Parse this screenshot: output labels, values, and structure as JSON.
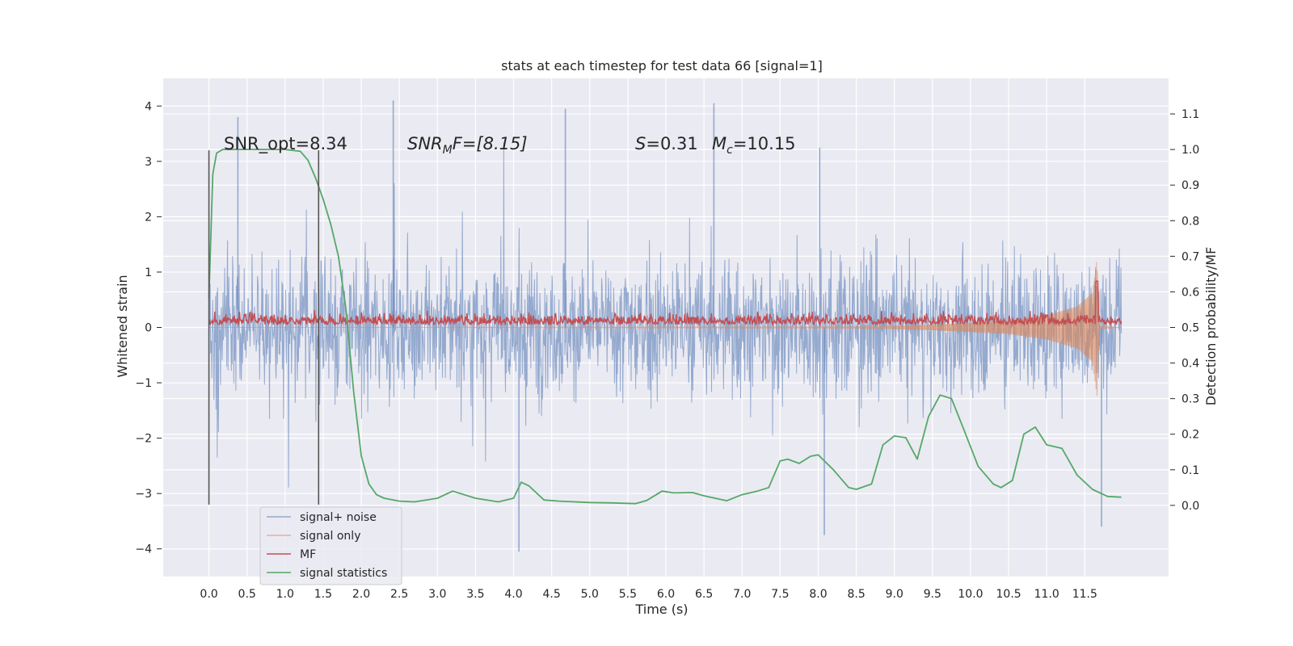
{
  "chart_data": {
    "type": "line",
    "title": "stats at each timestep for test data 66 [signal=1]",
    "xlabel": "Time (s)",
    "ylabel_left": "Whitened strain",
    "ylabel_right": "Detection probability/MF",
    "xlim": [
      -0.6,
      12.6
    ],
    "ylim_left": [
      -4.5,
      4.5
    ],
    "ylim_right": [
      -0.2,
      1.2
    ],
    "x_ticks": [
      0.0,
      0.5,
      1.0,
      1.5,
      2.0,
      2.5,
      3.0,
      3.5,
      4.0,
      4.5,
      5.0,
      5.5,
      6.0,
      6.5,
      7.0,
      7.5,
      8.0,
      8.5,
      9.0,
      9.5,
      10.0,
      10.5,
      11.0,
      11.5
    ],
    "x_tick_labels": [
      "0.0",
      "0.5",
      "1.0",
      "1.5",
      "2.0",
      "2.5",
      "3.0",
      "3.5",
      "4.0",
      "4.5",
      "5.0",
      "5.5",
      "6.0",
      "6.5",
      "7.0",
      "7.5",
      "8.0",
      "8.5",
      "9.0",
      "9.5",
      "10.0",
      "10.5",
      "11.0",
      "11.5"
    ],
    "y_left_ticks": [
      -4,
      -3,
      -2,
      -1,
      0,
      1,
      2,
      3,
      4
    ],
    "y_left_tick_labels": [
      "−4",
      "−3",
      "−2",
      "−1",
      "0",
      "1",
      "2",
      "3",
      "4"
    ],
    "y_right_ticks": [
      0.0,
      0.1,
      0.2,
      0.3,
      0.4,
      0.5,
      0.6,
      0.7,
      0.8,
      0.9,
      1.0,
      1.1
    ],
    "y_right_tick_labels": [
      "0.0",
      "0.1",
      "0.2",
      "0.3",
      "0.4",
      "0.5",
      "0.6",
      "0.7",
      "0.8",
      "0.9",
      "1.0",
      "1.1"
    ],
    "grid": true,
    "legend_position": "lower-left",
    "annotations": {
      "snr_opt": "SNR_opt=8.34",
      "snr_mf_base": "SNR",
      "snr_mf_sub": "M",
      "snr_mf_rest": "F=[8.15]",
      "s_letter": "S",
      "s_value": "=0.31",
      "mc_letter": "M",
      "mc_sub": "c",
      "mc_value": "=10.15"
    },
    "vertical_markers": [
      0.0,
      1.44
    ],
    "series": [
      {
        "name": "signal+ noise",
        "color": "#4c72b0",
        "x_range": [
          0.0,
          11.98
        ],
        "description_kind": "noise",
        "peaks": [
          {
            "x": 0.38,
            "y": 3.8
          },
          {
            "x": 2.42,
            "y": 4.1
          },
          {
            "x": 4.68,
            "y": 3.95
          },
          {
            "x": 6.63,
            "y": 4.05
          },
          {
            "x": 8.02,
            "y": 3.25
          },
          {
            "x": 4.07,
            "y": -4.05
          },
          {
            "x": 8.08,
            "y": -3.75
          },
          {
            "x": 11.72,
            "y": -3.6
          }
        ]
      },
      {
        "name": "signal only",
        "color": "#dd8452",
        "x": [
          0.0,
          8.5,
          9.5,
          10.5,
          11.0,
          11.4,
          11.6,
          11.66,
          11.7,
          11.98
        ],
        "amplitude": [
          0.0,
          0.01,
          0.05,
          0.12,
          0.22,
          0.38,
          0.62,
          1.25,
          0.02,
          0.0
        ]
      },
      {
        "name": "MF",
        "color": "#c44e52",
        "x_range": [
          0.0,
          11.98
        ],
        "baseline": 0.505,
        "peak_x": 11.66,
        "peak_y": 0.63
      },
      {
        "name": "signal statistics",
        "color": "#55a868",
        "x": [
          0.0,
          0.05,
          0.1,
          0.18,
          0.3,
          0.5,
          0.8,
          1.0,
          1.2,
          1.3,
          1.4,
          1.5,
          1.6,
          1.7,
          1.8,
          1.9,
          2.0,
          2.1,
          2.2,
          2.3,
          2.5,
          2.7,
          3.0,
          3.2,
          3.5,
          3.8,
          4.0,
          4.1,
          4.2,
          4.4,
          4.6,
          5.0,
          5.3,
          5.6,
          5.75,
          5.95,
          6.1,
          6.35,
          6.5,
          6.8,
          7.0,
          7.2,
          7.35,
          7.5,
          7.6,
          7.75,
          7.9,
          8.0,
          8.2,
          8.4,
          8.5,
          8.7,
          8.85,
          9.0,
          9.15,
          9.3,
          9.45,
          9.6,
          9.75,
          9.9,
          10.1,
          10.3,
          10.4,
          10.55,
          10.7,
          10.85,
          11.0,
          11.2,
          11.4,
          11.6,
          11.8,
          11.98
        ],
        "y": [
          0.58,
          0.93,
          0.99,
          1.0,
          1.0,
          1.0,
          1.0,
          1.0,
          0.995,
          0.97,
          0.92,
          0.86,
          0.79,
          0.7,
          0.55,
          0.32,
          0.14,
          0.06,
          0.03,
          0.02,
          0.012,
          0.01,
          0.02,
          0.04,
          0.02,
          0.01,
          0.02,
          0.065,
          0.055,
          0.015,
          0.012,
          0.008,
          0.007,
          0.005,
          0.014,
          0.04,
          0.035,
          0.036,
          0.027,
          0.013,
          0.03,
          0.04,
          0.05,
          0.125,
          0.13,
          0.118,
          0.138,
          0.142,
          0.1,
          0.05,
          0.045,
          0.06,
          0.17,
          0.195,
          0.19,
          0.13,
          0.25,
          0.31,
          0.3,
          0.22,
          0.11,
          0.06,
          0.05,
          0.07,
          0.2,
          0.22,
          0.17,
          0.16,
          0.085,
          0.045,
          0.025,
          0.023
        ]
      }
    ]
  }
}
